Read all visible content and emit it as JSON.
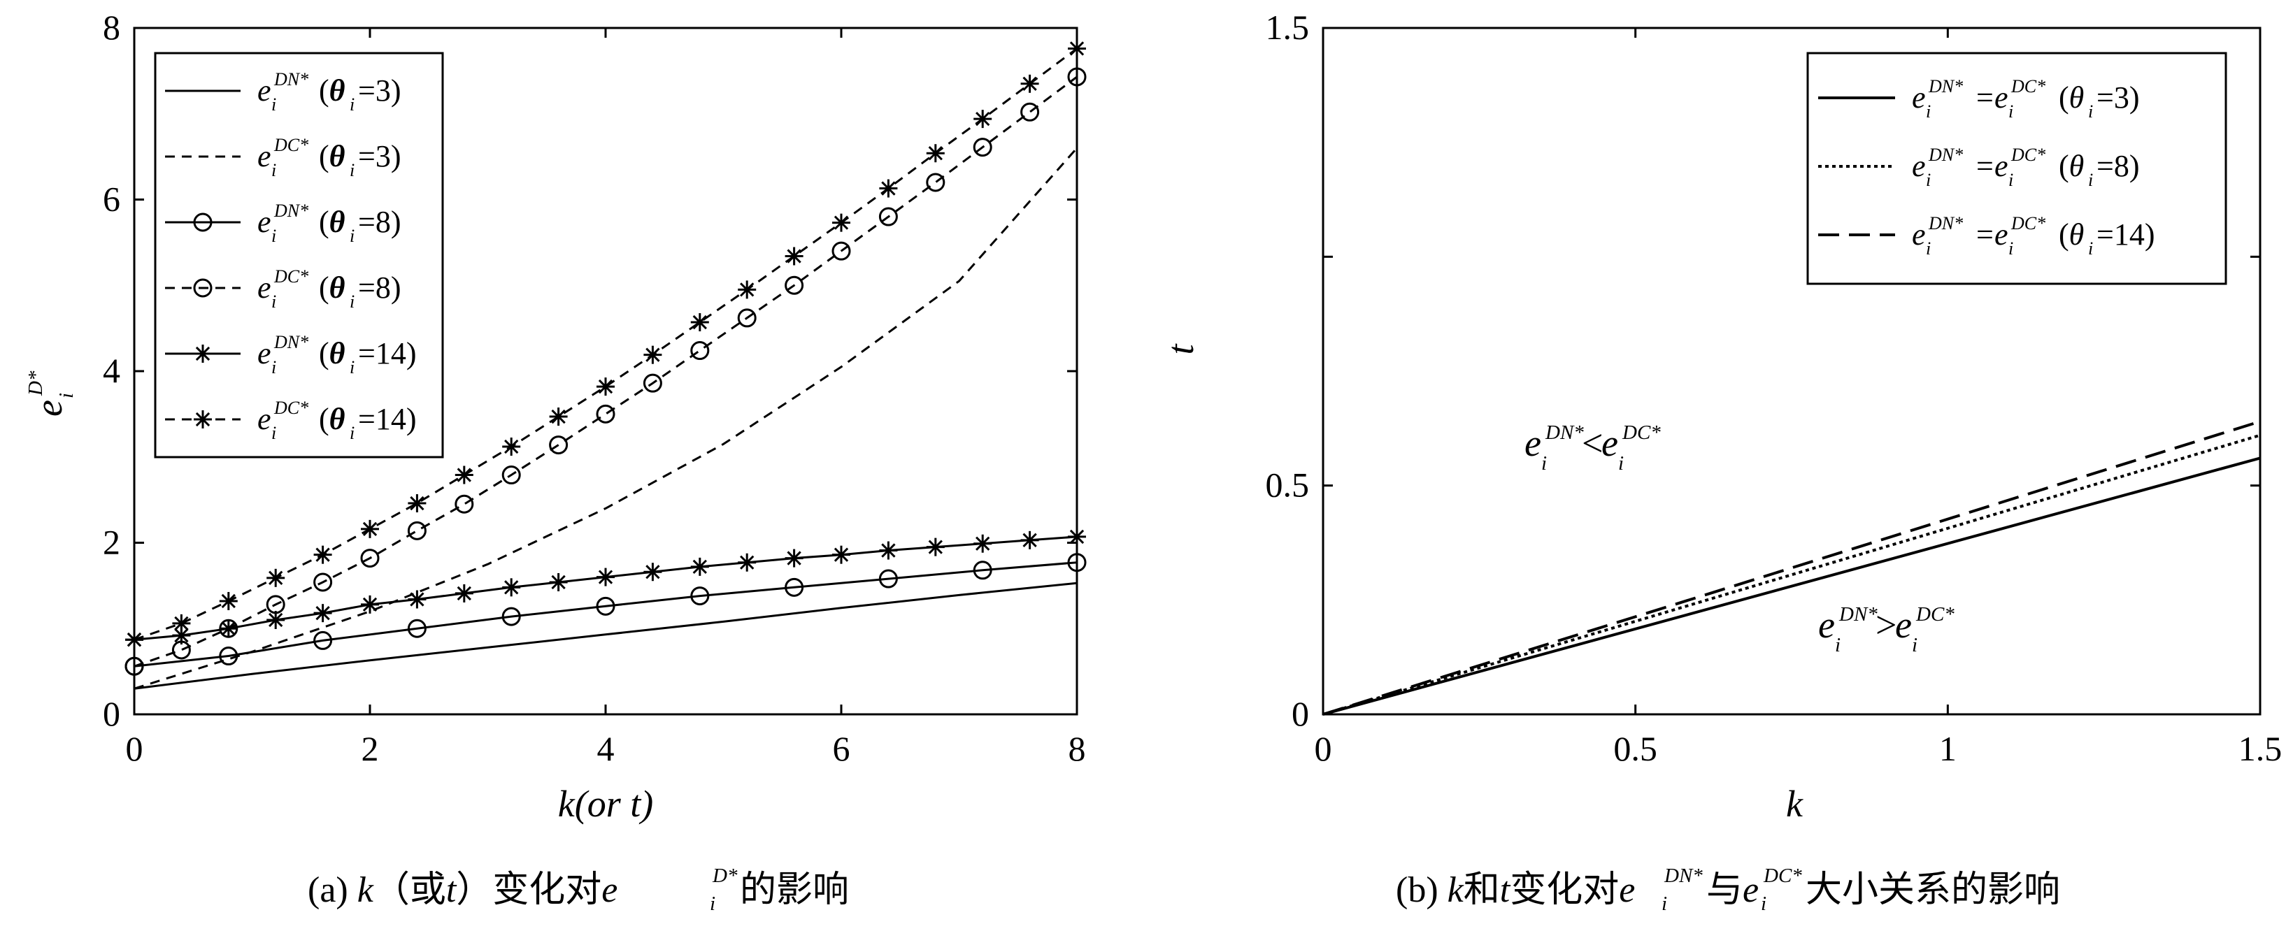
{
  "chart_data": [
    {
      "type": "line",
      "xlabel": "k(or t)",
      "ylabel": "e_i^{D*}",
      "xlim": [
        0,
        8
      ],
      "ylim": [
        0,
        8
      ],
      "xticks": [
        "0",
        "2",
        "4",
        "6",
        "8"
      ],
      "yticks": [
        "0",
        "2",
        "4",
        "6",
        "8"
      ],
      "caption": "(a) k（或t）变化对e_i^{D*}的影响",
      "legend_position": "top-left",
      "series": [
        {
          "legend": "e_i^{DN*}(θ_i=3)",
          "line": "solid",
          "marker": "none",
          "points": [
            [
              0,
              0.3
            ],
            [
              1,
              0.47
            ],
            [
              2,
              0.63
            ],
            [
              3,
              0.78
            ],
            [
              4,
              0.93
            ],
            [
              5,
              1.08
            ],
            [
              6,
              1.24
            ],
            [
              7,
              1.39
            ],
            [
              8,
              1.53
            ]
          ]
        },
        {
          "legend": "e_i^{DC*}(θ_i=3)",
          "line": "dashed",
          "marker": "none",
          "points": [
            [
              0,
              0.3
            ],
            [
              1,
              0.73
            ],
            [
              2,
              1.2
            ],
            [
              3,
              1.75
            ],
            [
              4,
              2.4
            ],
            [
              5,
              3.15
            ],
            [
              6,
              4.05
            ],
            [
              7,
              5.05
            ],
            [
              8,
              6.6
            ]
          ]
        },
        {
          "legend": "e_i^{DN*}(θ_i=8)",
          "line": "solid",
          "marker": "circle",
          "points": [
            [
              0,
              0.56
            ],
            [
              0.8,
              0.68
            ],
            [
              1.6,
              0.86
            ],
            [
              2.4,
              1.0
            ],
            [
              3.2,
              1.14
            ],
            [
              4,
              1.26
            ],
            [
              4.8,
              1.38
            ],
            [
              5.6,
              1.48
            ],
            [
              6.4,
              1.58
            ],
            [
              7.2,
              1.68
            ],
            [
              8,
              1.77
            ]
          ]
        },
        {
          "legend": "e_i^{DC*}(θ_i=8)",
          "line": "dashed",
          "marker": "circle",
          "points": [
            [
              0,
              0.56
            ],
            [
              0.4,
              0.75
            ],
            [
              0.8,
              1.0
            ],
            [
              1.2,
              1.28
            ],
            [
              1.6,
              1.54
            ],
            [
              2,
              1.82
            ],
            [
              2.4,
              2.14
            ],
            [
              2.8,
              2.45
            ],
            [
              3.2,
              2.79
            ],
            [
              3.6,
              3.14
            ],
            [
              4,
              3.5
            ],
            [
              4.4,
              3.86
            ],
            [
              4.8,
              4.24
            ],
            [
              5.2,
              4.62
            ],
            [
              5.6,
              5.0
            ],
            [
              6,
              5.4
            ],
            [
              6.4,
              5.8
            ],
            [
              6.8,
              6.2
            ],
            [
              7.2,
              6.61
            ],
            [
              7.6,
              7.02
            ],
            [
              8,
              7.43
            ]
          ]
        },
        {
          "legend": "e_i^{DN*}(θ_i=14)",
          "line": "solid",
          "marker": "star",
          "points": [
            [
              0,
              0.87
            ],
            [
              0.4,
              0.92
            ],
            [
              0.8,
              1.0
            ],
            [
              1.2,
              1.1
            ],
            [
              1.6,
              1.18
            ],
            [
              2,
              1.28
            ],
            [
              2.4,
              1.34
            ],
            [
              2.8,
              1.41
            ],
            [
              3.2,
              1.48
            ],
            [
              3.6,
              1.54
            ],
            [
              4,
              1.6
            ],
            [
              4.4,
              1.66
            ],
            [
              4.8,
              1.72
            ],
            [
              5.2,
              1.77
            ],
            [
              5.6,
              1.82
            ],
            [
              6,
              1.86
            ],
            [
              6.4,
              1.91
            ],
            [
              6.8,
              1.95
            ],
            [
              7.2,
              1.99
            ],
            [
              7.6,
              2.03
            ],
            [
              8,
              2.07
            ]
          ]
        },
        {
          "legend": "e_i^{DC*}(θ_i=14)",
          "line": "dashed",
          "marker": "star",
          "points": [
            [
              0,
              0.87
            ],
            [
              0.4,
              1.06
            ],
            [
              0.8,
              1.32
            ],
            [
              1.2,
              1.59
            ],
            [
              1.6,
              1.86
            ],
            [
              2,
              2.16
            ],
            [
              2.4,
              2.46
            ],
            [
              2.8,
              2.79
            ],
            [
              3.2,
              3.12
            ],
            [
              3.6,
              3.47
            ],
            [
              4,
              3.82
            ],
            [
              4.4,
              4.19
            ],
            [
              4.8,
              4.57
            ],
            [
              5.2,
              4.95
            ],
            [
              5.6,
              5.34
            ],
            [
              6,
              5.73
            ],
            [
              6.4,
              6.13
            ],
            [
              6.8,
              6.54
            ],
            [
              7.2,
              6.94
            ],
            [
              7.6,
              7.35
            ],
            [
              8,
              7.76
            ]
          ]
        }
      ]
    },
    {
      "type": "line",
      "xlabel": "k",
      "ylabel": "t",
      "xlim": [
        0,
        1.5
      ],
      "ylim": [
        0,
        1.5
      ],
      "xticks": [
        "0",
        "0.5",
        "1",
        "1.5"
      ],
      "yticks": [
        "0",
        "0.5",
        "1.5"
      ],
      "caption": "(b) k和t变化对e_i^{DN*}与e_i^{DC*}大小关系的影响",
      "legend_position": "top-right",
      "region_labels": [
        "e_i^{DN*}<e_i^{DC*}",
        "e_i^{DN*}>e_i^{DC*}"
      ],
      "series": [
        {
          "legend": "e_i^{DN*}=e_i^{DC*}(θ_i=3)",
          "line": "solid",
          "points": [
            [
              0,
              0
            ],
            [
              1.5,
              0.56
            ]
          ]
        },
        {
          "legend": "e_i^{DN*}=e_i^{DC*}(θ_i=8)",
          "line": "dotted",
          "points": [
            [
              0,
              0
            ],
            [
              1.5,
              0.61
            ]
          ]
        },
        {
          "legend": "e_i^{DN*}=e_i^{DC*}(θ_i=14)",
          "line": "dashed",
          "points": [
            [
              0,
              0
            ],
            [
              1.5,
              0.64
            ]
          ]
        }
      ]
    }
  ]
}
